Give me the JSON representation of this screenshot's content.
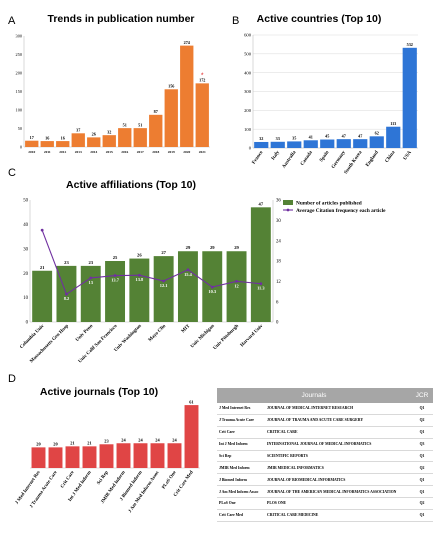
{
  "chart_data": [
    {
      "panel_letter": "A",
      "type": "bar",
      "title": "Trends in publication number",
      "categories": [
        "2010",
        "2011",
        "2012",
        "2013",
        "2014",
        "2015",
        "2016",
        "2017",
        "2018",
        "2019",
        "2020",
        "2021"
      ],
      "values": [
        17,
        16,
        16,
        37,
        26,
        32,
        51,
        51,
        87,
        156,
        274,
        172
      ],
      "ylim": [
        0,
        300
      ],
      "yticks": [
        0,
        50,
        100,
        150,
        200,
        250,
        300
      ],
      "bar_color": "#ed7d31",
      "marked_category": "2021",
      "marker": "*",
      "grid": false
    },
    {
      "panel_letter": "B",
      "type": "bar",
      "title": "Active countries (Top 10)",
      "categories": [
        "France",
        "Italy",
        "Australia",
        "Canada",
        "Spain",
        "Germany",
        "South Korea",
        "England",
        "China",
        "USA"
      ],
      "values": [
        32,
        33,
        35,
        41,
        45,
        47,
        47,
        62,
        113,
        532
      ],
      "ylim": [
        0,
        600
      ],
      "yticks": [
        0,
        100,
        200,
        300,
        400,
        500,
        600
      ],
      "bar_color": "#2e75d6",
      "grid": true
    },
    {
      "panel_letter": "C",
      "type": "bar",
      "title": "Active affiliations (Top 10)",
      "categories": [
        "Columbia Univ",
        "Massachusetts Gen Hosp",
        "Univ Penn",
        "Univ Calif San Francisco",
        "Univ Washington",
        "Mayo Clin",
        "MIT",
        "Univ Michigan",
        "Univ Pittsburgh",
        "Harvard Univ"
      ],
      "series": [
        {
          "name": "Number of articles published",
          "type": "bar",
          "axis": "left",
          "color": "#548235",
          "values": [
            21,
            23,
            23,
            25,
            26,
            27,
            29,
            29,
            29,
            47
          ]
        },
        {
          "name": "Average Citation frequency each article",
          "type": "line",
          "axis": "right",
          "color": "#7030a0",
          "values": [
            27.1,
            8.2,
            13,
            13.7,
            13.8,
            12.1,
            15.4,
            10.3,
            12,
            11.3
          ]
        }
      ],
      "left_ylim": [
        0,
        50
      ],
      "left_yticks": [
        0,
        10,
        20,
        30,
        40,
        50
      ],
      "right_ylim": [
        0,
        36
      ],
      "right_yticks": [
        0,
        6,
        12,
        18,
        24,
        30,
        36
      ],
      "legend_position": "top-right",
      "grid": false
    },
    {
      "panel_letter": "D",
      "type": "bar",
      "title": "Active journals (Top 10)",
      "categories": [
        "J Med Internet Res",
        "J Trauma Acute Care",
        "Crit Care",
        "Int J Med Inform",
        "Sci Rep",
        "JMIR Med Inform",
        "J Biomed Inform",
        "J Am Med Inform Assoc",
        "PLoS One",
        "Crit Care Med"
      ],
      "values": [
        20,
        20,
        21,
        21,
        23,
        24,
        24,
        24,
        24,
        61
      ],
      "bar_color": "#e04545",
      "grid": false
    },
    {
      "type": "table",
      "columns": [
        "Journals",
        "JCR"
      ],
      "rows": [
        [
          "J Med Internet Res",
          "JOURNAL OF MEDICAL INTERNET RESEARCH",
          "Q1"
        ],
        [
          "J Trauma Acute Care",
          "JOURNAL OF TRAUMA AND ACUTE CARE SURGERY",
          "Q2"
        ],
        [
          "Crit Care",
          "CRITICAL CARE",
          "Q1"
        ],
        [
          "Int J Med Inform",
          "INTERNATIONAL JOURNAL OF MEDICAL INFORMATICS",
          "Q3"
        ],
        [
          "Sci Rep",
          "SCIENTIFIC REPORTS",
          "Q1"
        ],
        [
          "JMIR Med Inform",
          "JMIR MEDICAL INFORMATICS",
          "Q2"
        ],
        [
          "J Biomed Inform",
          "JOURNAL OF BIOMEDICAL INFORMATICS",
          "Q1"
        ],
        [
          "J Am Med Inform Assoc",
          "JOURNAL OF THE AMERICAN MEDICAL INFORMATICS ASSOCIATION",
          "Q1"
        ],
        [
          "PLoS One",
          "PLOS ONE",
          "Q2"
        ],
        [
          "Crit Care Med",
          "CRITICAL CARE MEDICINE",
          "Q1"
        ]
      ]
    }
  ]
}
